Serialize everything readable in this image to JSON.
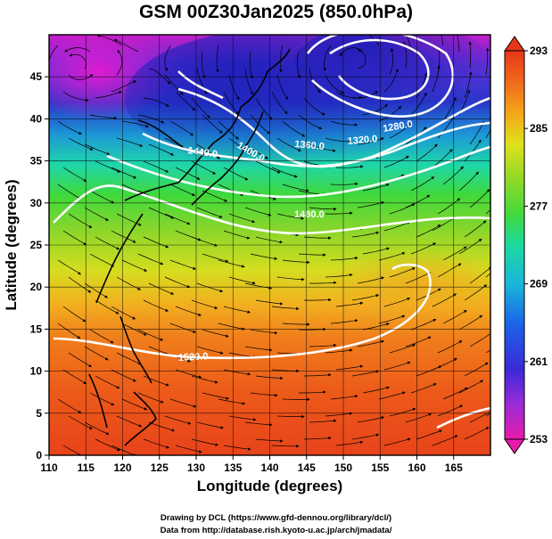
{
  "title": "GSM 00Z30Jan2025 (850.0hPa)",
  "xlabel": "Longitude (degrees)",
  "ylabel": "Latitude  (degrees)",
  "credits": {
    "line1": "Drawing by DCL (https://www.gfd-dennou.org/library/dcl/)",
    "line2": "Data from http://database.rish.kyoto-u.ac.jp/arch/jmadata/"
  },
  "chart_data": {
    "type": "heatmap",
    "title": "GSM 00Z30Jan2025 (850.0hPa)",
    "xlabel": "Longitude (degrees)",
    "ylabel": "Latitude  (degrees)",
    "xlim": [
      110,
      170
    ],
    "ylim": [
      0,
      50
    ],
    "x_ticks": [
      "110",
      "115",
      "120",
      "125",
      "130",
      "135",
      "140",
      "145",
      "150",
      "155",
      "160",
      "165"
    ],
    "y_ticks": [
      "0",
      "5",
      "10",
      "15",
      "20",
      "25",
      "30",
      "35",
      "40",
      "45"
    ],
    "colorbar": {
      "min": 253,
      "max": 293,
      "labels": [
        "293",
        "285",
        "277",
        "269",
        "261",
        "253"
      ],
      "colors": [
        "#e81aa8",
        "#9a2bd8",
        "#3a2ad8",
        "#1a66e8",
        "#19b7d8",
        "#1dd9a0",
        "#42d93c",
        "#9ad925",
        "#dfe21a",
        "#f4a51a",
        "#f06a1a",
        "#e8351a"
      ]
    },
    "contour_labels": [
      "1440.0",
      "1400.0",
      "1360.0",
      "1320.0",
      "1280.0",
      "1480.0",
      "1520.0"
    ],
    "grid": true,
    "overlays": [
      "temperature shading",
      "geopotential height contours",
      "wind streamlines",
      "coastlines"
    ]
  }
}
